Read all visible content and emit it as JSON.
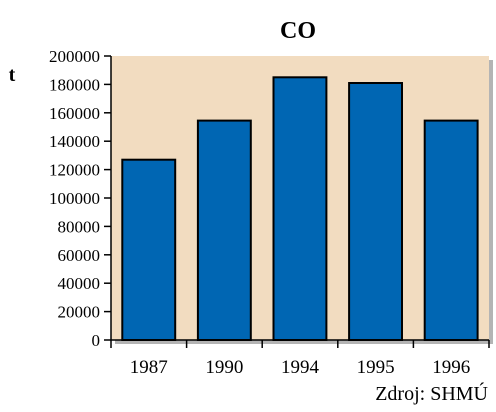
{
  "chart_data": {
    "type": "bar",
    "title": "CO",
    "ylabel": "t",
    "xlabel": "",
    "categories": [
      "1987",
      "1990",
      "1994",
      "1995",
      "1996"
    ],
    "values": [
      127000,
      154500,
      185000,
      181000,
      154500
    ],
    "ylim": [
      0,
      200000
    ],
    "yticks": [
      0,
      20000,
      40000,
      60000,
      80000,
      100000,
      120000,
      140000,
      160000,
      180000,
      200000
    ],
    "ytick_labels": [
      "0",
      "20000",
      "40000",
      "60000",
      "80000",
      "100000",
      "120000",
      "140000",
      "160000",
      "180000",
      "200000"
    ],
    "grid": false,
    "legend": "none",
    "source_note": "Zdroj: SHMÚ",
    "colors": {
      "bar_fill": "#0066b3",
      "bar_stroke": "#000000",
      "plot_background": "#f2dcc0",
      "plot_shadow": "#b4b4b4"
    }
  }
}
